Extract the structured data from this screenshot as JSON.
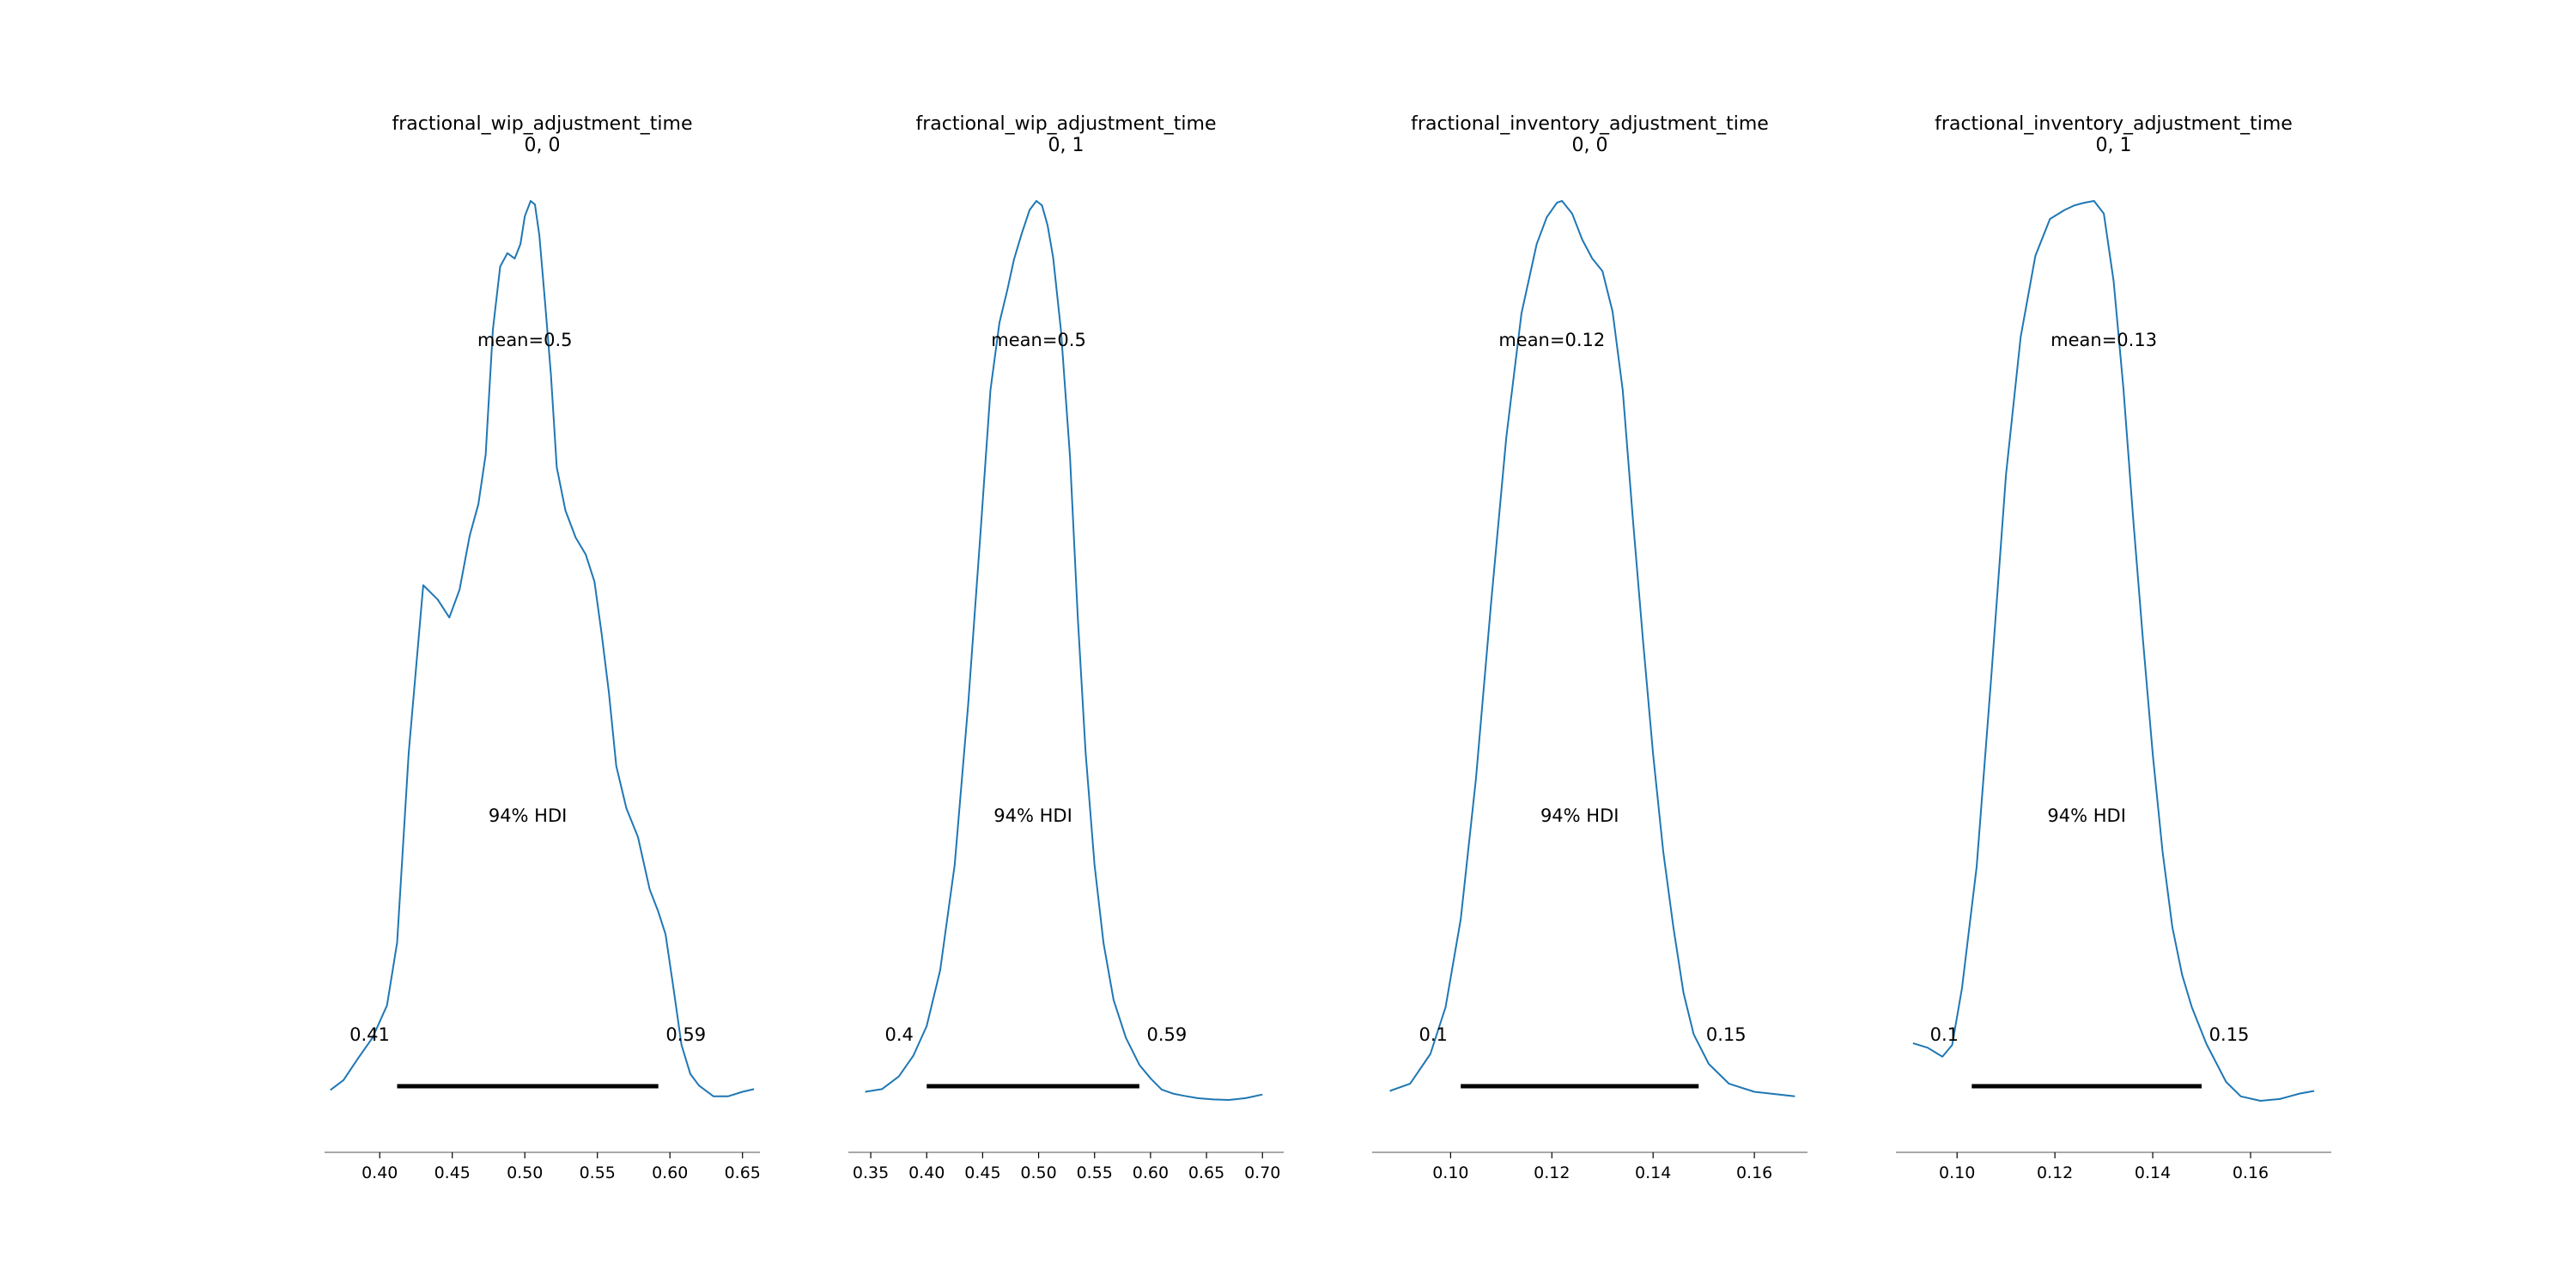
{
  "colors": {
    "kde_line": "#1f77b4",
    "hdi_bar": "#000000",
    "axis": "#8c8c8c",
    "background": "#ffffff"
  },
  "chart_data": [
    {
      "type": "line",
      "title": "fractional_wip_adjustment_time",
      "subtitle": "0, 0",
      "grid": false,
      "y_axis_visible": false,
      "xlim": [
        0.362,
        0.662
      ],
      "xticks": [
        0.4,
        0.45,
        0.5,
        0.55,
        0.6,
        0.65
      ],
      "xtick_labels": [
        "0.40",
        "0.45",
        "0.50",
        "0.55",
        "0.60",
        "0.65"
      ],
      "ylim": [
        0,
        1.02
      ],
      "density_curve": {
        "x": [
          0.366,
          0.375,
          0.385,
          0.395,
          0.405,
          0.412,
          0.42,
          0.43,
          0.44,
          0.448,
          0.455,
          0.462,
          0.468,
          0.473,
          0.478,
          0.483,
          0.488,
          0.493,
          0.497,
          0.5,
          0.504,
          0.507,
          0.51,
          0.514,
          0.518,
          0.522,
          0.528,
          0.535,
          0.542,
          0.548,
          0.553,
          0.558,
          0.563,
          0.57,
          0.578,
          0.586,
          0.592,
          0.597,
          0.602,
          0.608,
          0.614,
          0.62,
          0.63,
          0.64,
          0.65,
          0.658
        ],
        "y": [
          0.012,
          0.023,
          0.047,
          0.07,
          0.106,
          0.176,
          0.387,
          0.573,
          0.557,
          0.537,
          0.568,
          0.628,
          0.663,
          0.718,
          0.857,
          0.927,
          0.942,
          0.936,
          0.952,
          0.983,
          1.0,
          0.996,
          0.962,
          0.886,
          0.807,
          0.704,
          0.656,
          0.626,
          0.607,
          0.577,
          0.518,
          0.453,
          0.372,
          0.325,
          0.293,
          0.235,
          0.21,
          0.185,
          0.13,
          0.062,
          0.03,
          0.017,
          0.005,
          0.005,
          0.01,
          0.013
        ]
      },
      "mean": 0.5,
      "mean_label": "mean=0.5",
      "hdi_label": "94% HDI",
      "hdi": [
        0.412,
        0.592
      ],
      "hdi_low_label": "0.41",
      "hdi_high_label": "0.59"
    },
    {
      "type": "line",
      "title": "fractional_wip_adjustment_time",
      "subtitle": "0, 1",
      "grid": false,
      "y_axis_visible": false,
      "xlim": [
        0.33,
        0.719
      ],
      "xticks": [
        0.35,
        0.4,
        0.45,
        0.5,
        0.55,
        0.6,
        0.65,
        0.7
      ],
      "xtick_labels": [
        "0.35",
        "0.40",
        "0.45",
        "0.50",
        "0.55",
        "0.60",
        "0.65",
        "0.70"
      ],
      "ylim": [
        0,
        1.02
      ],
      "density_curve": {
        "x": [
          0.345,
          0.36,
          0.375,
          0.388,
          0.4,
          0.412,
          0.425,
          0.437,
          0.448,
          0.457,
          0.465,
          0.472,
          0.478,
          0.485,
          0.492,
          0.498,
          0.503,
          0.508,
          0.513,
          0.52,
          0.528,
          0.535,
          0.542,
          0.55,
          0.558,
          0.567,
          0.578,
          0.59,
          0.6,
          0.61,
          0.62,
          0.63,
          0.642,
          0.656,
          0.67,
          0.685,
          0.7
        ],
        "y": [
          0.01,
          0.013,
          0.027,
          0.05,
          0.083,
          0.145,
          0.262,
          0.44,
          0.63,
          0.79,
          0.865,
          0.901,
          0.935,
          0.964,
          0.99,
          1.0,
          0.995,
          0.973,
          0.937,
          0.856,
          0.716,
          0.537,
          0.387,
          0.262,
          0.175,
          0.112,
          0.07,
          0.04,
          0.025,
          0.0125,
          0.008,
          0.0055,
          0.003,
          0.0015,
          0.001,
          0.003,
          0.007
        ]
      },
      "mean": 0.5,
      "mean_label": "mean=0.5",
      "hdi_label": "94% HDI",
      "hdi": [
        0.4,
        0.59
      ],
      "hdi_low_label": "0.4",
      "hdi_high_label": "0.59"
    },
    {
      "type": "line",
      "title": "fractional_inventory_adjustment_time",
      "subtitle": "0, 0",
      "grid": false,
      "y_axis_visible": false,
      "xlim": [
        0.0845,
        0.1705
      ],
      "xticks": [
        0.1,
        0.12,
        0.14,
        0.16
      ],
      "xtick_labels": [
        "0.10",
        "0.12",
        "0.14",
        "0.16"
      ],
      "ylim": [
        0,
        1.02
      ],
      "density_curve": {
        "x": [
          0.088,
          0.092,
          0.096,
          0.099,
          0.102,
          0.105,
          0.108,
          0.111,
          0.114,
          0.117,
          0.119,
          0.121,
          0.122,
          0.124,
          0.126,
          0.128,
          0.13,
          0.132,
          0.134,
          0.136,
          0.138,
          0.14,
          0.142,
          0.144,
          0.146,
          0.148,
          0.151,
          0.155,
          0.16,
          0.168
        ],
        "y": [
          0.011,
          0.019,
          0.052,
          0.104,
          0.202,
          0.358,
          0.553,
          0.737,
          0.875,
          0.952,
          0.982,
          0.998,
          1.0,
          0.986,
          0.957,
          0.936,
          0.922,
          0.877,
          0.79,
          0.647,
          0.512,
          0.385,
          0.277,
          0.193,
          0.12,
          0.074,
          0.041,
          0.019,
          0.01,
          0.005
        ]
      },
      "mean": 0.12,
      "mean_label": "mean=0.12",
      "hdi_label": "94% HDI",
      "hdi": [
        0.102,
        0.149
      ],
      "hdi_low_label": "0.1",
      "hdi_high_label": "0.15"
    },
    {
      "type": "line",
      "title": "fractional_inventory_adjustment_time",
      "subtitle": "0, 1",
      "grid": false,
      "y_axis_visible": false,
      "xlim": [
        0.0875,
        0.1765
      ],
      "xticks": [
        0.1,
        0.12,
        0.14,
        0.16
      ],
      "xtick_labels": [
        "0.10",
        "0.12",
        "0.14",
        "0.16"
      ],
      "ylim": [
        0,
        1.02
      ],
      "density_curve": {
        "x": [
          0.091,
          0.094,
          0.097,
          0.099,
          0.101,
          0.104,
          0.107,
          0.11,
          0.113,
          0.116,
          0.119,
          0.122,
          0.124,
          0.126,
          0.128,
          0.13,
          0.132,
          0.134,
          0.136,
          0.138,
          0.14,
          0.142,
          0.144,
          0.146,
          0.148,
          0.151,
          0.155,
          0.158,
          0.162,
          0.166,
          0.17,
          0.173
        ],
        "y": [
          0.064,
          0.059,
          0.049,
          0.062,
          0.125,
          0.26,
          0.472,
          0.696,
          0.849,
          0.939,
          0.98,
          0.99,
          0.995,
          0.998,
          1.0,
          0.986,
          0.911,
          0.792,
          0.647,
          0.512,
          0.385,
          0.277,
          0.193,
          0.14,
          0.104,
          0.063,
          0.021,
          0.005,
          0.0,
          0.002,
          0.008,
          0.011
        ]
      },
      "mean": 0.13,
      "mean_label": "mean=0.13",
      "hdi_label": "94% HDI",
      "hdi": [
        0.103,
        0.15
      ],
      "hdi_low_label": "0.1",
      "hdi_high_label": "0.15"
    }
  ]
}
